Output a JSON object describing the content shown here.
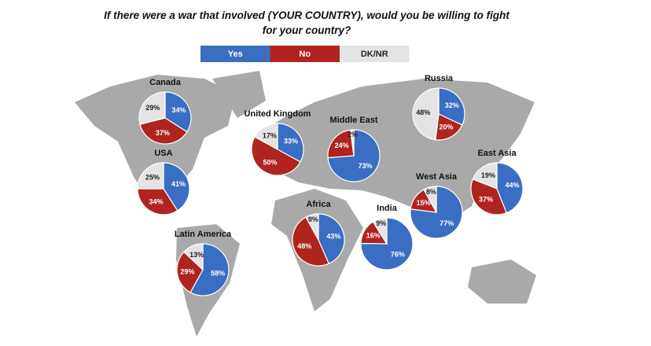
{
  "chart_data": {
    "type": "pie",
    "title": "If there were a war that involved (YOUR COUNTRY), would you be willing to fight for your country?",
    "categories": [
      "Canada",
      "USA",
      "Latin America",
      "United Kingdom",
      "Middle East",
      "Africa",
      "Russia",
      "India",
      "West Asia",
      "East Asia"
    ],
    "series": [
      {
        "name": "Yes",
        "color": "#3a6ec2",
        "values": [
          34,
          41,
          58,
          33,
          73,
          43,
          32,
          76,
          77,
          44
        ],
        "value_labels": [
          "34%",
          "41%",
          "58%",
          "33%",
          "73%",
          "43%",
          "32%",
          "76%",
          "77%",
          "44%"
        ]
      },
      {
        "name": "No",
        "color": "#b0241f",
        "values": [
          37,
          34,
          29,
          50,
          24,
          48,
          20,
          16,
          15,
          37
        ],
        "value_labels": [
          "37%",
          "34%",
          "29%",
          "50%",
          "24%",
          "48%",
          "20%",
          "16%",
          "15%",
          "37%"
        ]
      },
      {
        "name": "DK/NR",
        "color": "#e4e4e4",
        "values": [
          29,
          25,
          13,
          17,
          2,
          8,
          48,
          9,
          8,
          19
        ],
        "value_labels": [
          "29%",
          "25%",
          "13%",
          "17%",
          "2%",
          "8%",
          "48%",
          "9%",
          "8%",
          "19%"
        ]
      }
    ]
  }
}
